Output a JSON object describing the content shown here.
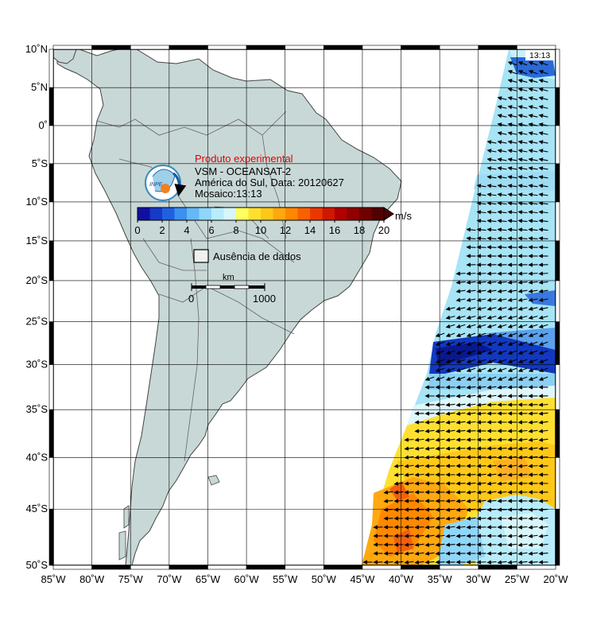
{
  "map": {
    "title": "Produto experimental",
    "line1": "VSM - OCEANSAT-2",
    "line2": "América do Sul, Data: 20120627",
    "line3": "Mosaico:13:13",
    "time_badge": "13:13",
    "logo_label": "INPE",
    "colorbar": {
      "unit": "m/s",
      "ticks": [
        "0",
        "2",
        "4",
        "6",
        "8",
        "10",
        "12",
        "14",
        "16",
        "18",
        "20"
      ],
      "range": [
        0,
        20
      ],
      "colors": [
        "#1010a0",
        "#1838c8",
        "#2060e0",
        "#3c90f0",
        "#66b8f6",
        "#90d6fa",
        "#b8ecfb",
        "#d6f6fb",
        "#ffff60",
        "#ffe030",
        "#ffc818",
        "#ffa810",
        "#ff8800",
        "#f86000",
        "#e83800",
        "#d01800",
        "#b00000",
        "#900000",
        "#700000",
        "#500000"
      ]
    },
    "missing_data_label": "Ausência de dados",
    "scalebar": {
      "title": "km",
      "start": "0",
      "end": "1000"
    },
    "lat_labels": [
      "10˚N",
      "5˚N",
      "0˚",
      "5˚S",
      "10˚S",
      "15˚S",
      "20˚S",
      "25˚S",
      "30˚S",
      "35˚S",
      "40˚S",
      "45˚S",
      "50˚S"
    ],
    "lon_labels": [
      "85˚W",
      "80˚W",
      "75˚W",
      "70˚W",
      "65˚W",
      "60˚W",
      "55˚W",
      "50˚W",
      "45˚W",
      "40˚W",
      "35˚W",
      "30˚W",
      "25˚W",
      "20˚W"
    ],
    "lat_values": [
      10,
      5,
      0,
      -5,
      -10,
      -15,
      -20,
      -25,
      -30,
      -35,
      -40,
      -45,
      -50
    ],
    "lon_values": [
      -85,
      -80,
      -75,
      -70,
      -65,
      -60,
      -55,
      -50,
      -45,
      -40,
      -35,
      -30,
      -25,
      -20
    ],
    "extent": {
      "lon": [
        -85,
        -20
      ],
      "lat": [
        -50,
        10
      ]
    },
    "colors": {
      "land": "#c8d8d6",
      "coast": "#444444",
      "grid": "#000000",
      "title": "#e00000"
    }
  }
}
